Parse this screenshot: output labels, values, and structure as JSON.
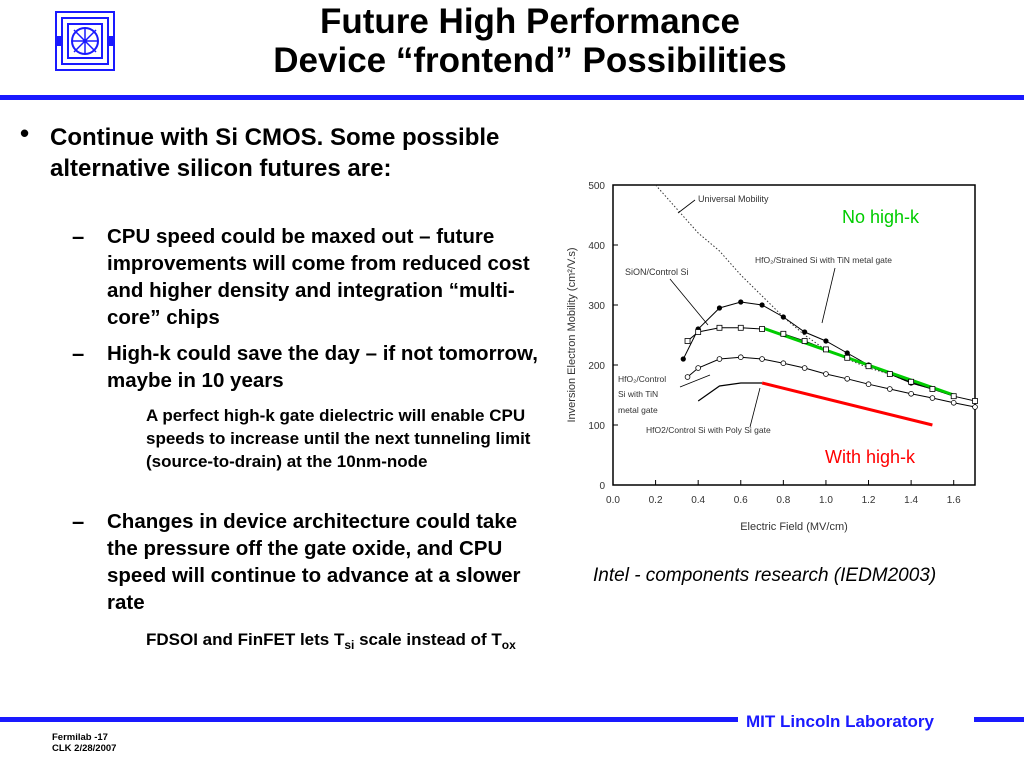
{
  "header": {
    "title_line1": "Future High Performance",
    "title_line2": "Device “frontend” Possibilities",
    "logo": "lincoln-lab-logo"
  },
  "content": {
    "bullet1": "Continue with Si CMOS. Some possible alternative silicon futures are:",
    "sub1": "CPU speed could be maxed out – future improvements will come from reduced cost and higher density and integration “multi-core” chips",
    "sub2": "High-k could save the day – if not tomorrow, maybe in 10 years",
    "sub2_detail": "A perfect high-k gate dielectric will enable CPU speeds to increase until the next tunneling limit (source-to-drain) at the 10nm-node",
    "sub3": "Changes in device architecture could take the pressure off the gate oxide, and CPU speed will continue to advance at a slower rate",
    "sub3_detail_pre": "FDSOI and FinFET lets T",
    "sub3_detail_sub1": "si",
    "sub3_detail_mid": " scale instead of T",
    "sub3_detail_sub2": "ox",
    "dash": "–"
  },
  "caption": "Intel - components research (IEDM2003)",
  "footer": {
    "line1": "Fermilab -17",
    "line2": "CLK 2/28/2007",
    "lab": "MIT Lincoln Laboratory"
  },
  "chart_data": {
    "type": "line",
    "xlabel": "Electric Field (MV/cm)",
    "ylabel": "Inversion Electron Mobility (cm²/V.s)",
    "xlim": [
      0.0,
      1.7
    ],
    "ylim": [
      0,
      500
    ],
    "xticks": [
      "0.0",
      "0.2",
      "0.4",
      "0.6",
      "0.8",
      "1.0",
      "1.2",
      "1.4",
      "1.6"
    ],
    "yticks": [
      "0",
      "100",
      "200",
      "300",
      "400",
      "500"
    ],
    "annotations": {
      "no_highk": "No high-k",
      "with_highk": "With high-k",
      "universal": "Universal Mobility",
      "hfo2_strained": "HfO₂/Strained Si with TiN metal gate",
      "sion": "SiON/Control Si",
      "hfo2_tin_1": "HfO₂/Control",
      "hfo2_tin_2": "Si with TiN",
      "hfo2_tin_3": "metal gate",
      "hfo2_poly": "HfO2/Control Si with Poly Si gate"
    },
    "colors": {
      "no_highk": "#00cc00",
      "with_highk": "#ff0000",
      "axis": "#000000"
    },
    "series": [
      {
        "name": "Universal Mobility",
        "style": "dotted",
        "x": [
          0.2,
          0.3,
          0.4,
          0.5,
          0.6,
          0.7,
          0.8,
          0.9,
          1.0,
          1.1,
          1.2,
          1.3,
          1.4,
          1.5,
          1.6
        ],
        "y": [
          500,
          460,
          420,
          390,
          350,
          315,
          280,
          250,
          225,
          210,
          195,
          185,
          170,
          160,
          148
        ]
      },
      {
        "name": "HfO₂/Strained Si with TiN metal gate",
        "marker": "filled-circle",
        "x": [
          0.33,
          0.4,
          0.5,
          0.6,
          0.7,
          0.8,
          0.9,
          1.0,
          1.1,
          1.2,
          1.3,
          1.4,
          1.5
        ],
        "y": [
          210,
          260,
          295,
          305,
          300,
          280,
          255,
          240,
          220,
          200,
          185,
          170,
          160
        ]
      },
      {
        "name": "SiON/Control Si",
        "marker": "square",
        "x": [
          0.35,
          0.4,
          0.5,
          0.6,
          0.7,
          0.8,
          0.9,
          1.0,
          1.1,
          1.2,
          1.3,
          1.4,
          1.5,
          1.6,
          1.7
        ],
        "y": [
          240,
          255,
          262,
          262,
          260,
          252,
          240,
          226,
          212,
          198,
          185,
          172,
          160,
          148,
          140
        ]
      },
      {
        "name": "HfO₂/Control Si with TiN metal gate",
        "marker": "open-circle",
        "x": [
          0.35,
          0.4,
          0.5,
          0.6,
          0.7,
          0.8,
          0.9,
          1.0,
          1.1,
          1.2,
          1.3,
          1.4,
          1.5,
          1.6,
          1.7
        ],
        "y": [
          180,
          195,
          210,
          213,
          210,
          203,
          195,
          185,
          177,
          168,
          160,
          152,
          145,
          137,
          130
        ]
      },
      {
        "name": "HfO2/Control Si with Poly Si gate",
        "x": [
          0.4,
          0.5,
          0.6,
          0.7
        ],
        "y": [
          140,
          165,
          170,
          170
        ]
      },
      {
        "name": "No high-k",
        "color": "#00cc00",
        "x": [
          0.7,
          1.6
        ],
        "y": [
          262,
          150
        ]
      },
      {
        "name": "With high-k",
        "color": "#ff0000",
        "x": [
          0.7,
          1.5
        ],
        "y": [
          170,
          100
        ]
      }
    ]
  }
}
